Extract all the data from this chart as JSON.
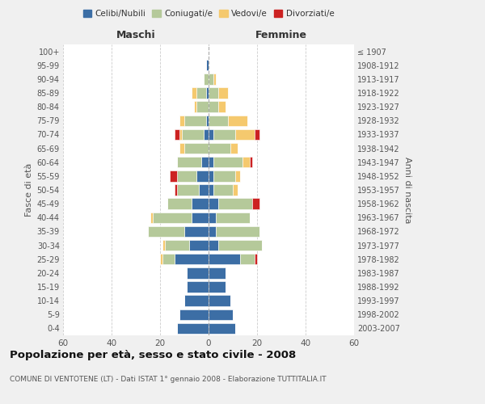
{
  "age_groups": [
    "0-4",
    "5-9",
    "10-14",
    "15-19",
    "20-24",
    "25-29",
    "30-34",
    "35-39",
    "40-44",
    "45-49",
    "50-54",
    "55-59",
    "60-64",
    "65-69",
    "70-74",
    "75-79",
    "80-84",
    "85-89",
    "90-94",
    "95-99",
    "100+"
  ],
  "birth_years": [
    "2003-2007",
    "1998-2002",
    "1993-1997",
    "1988-1992",
    "1983-1987",
    "1978-1982",
    "1973-1977",
    "1968-1972",
    "1963-1967",
    "1958-1962",
    "1953-1957",
    "1948-1952",
    "1943-1947",
    "1938-1942",
    "1933-1937",
    "1928-1932",
    "1923-1927",
    "1918-1922",
    "1913-1917",
    "1908-1912",
    "≤ 1907"
  ],
  "male": {
    "celibi": [
      13,
      12,
      10,
      9,
      9,
      14,
      8,
      10,
      7,
      7,
      4,
      5,
      3,
      0,
      2,
      1,
      0,
      1,
      0,
      1,
      0
    ],
    "coniugati": [
      0,
      0,
      0,
      0,
      0,
      5,
      10,
      15,
      16,
      10,
      9,
      8,
      10,
      10,
      9,
      9,
      5,
      4,
      2,
      0,
      0
    ],
    "vedovi": [
      0,
      0,
      0,
      0,
      0,
      1,
      1,
      0,
      1,
      0,
      0,
      0,
      0,
      2,
      1,
      2,
      1,
      2,
      0,
      0,
      0
    ],
    "divorziati": [
      0,
      0,
      0,
      0,
      0,
      0,
      0,
      0,
      0,
      0,
      1,
      3,
      0,
      0,
      2,
      0,
      0,
      0,
      0,
      0,
      0
    ]
  },
  "female": {
    "nubili": [
      11,
      10,
      9,
      7,
      7,
      13,
      4,
      3,
      3,
      4,
      2,
      2,
      2,
      0,
      2,
      0,
      0,
      0,
      0,
      0,
      0
    ],
    "coniugate": [
      0,
      0,
      0,
      0,
      0,
      6,
      18,
      18,
      14,
      14,
      8,
      9,
      12,
      9,
      9,
      8,
      4,
      4,
      2,
      0,
      0
    ],
    "vedove": [
      0,
      0,
      0,
      0,
      0,
      0,
      0,
      0,
      0,
      0,
      2,
      2,
      3,
      3,
      8,
      8,
      3,
      4,
      1,
      0,
      0
    ],
    "divorziate": [
      0,
      0,
      0,
      0,
      0,
      1,
      0,
      0,
      0,
      3,
      0,
      0,
      1,
      0,
      2,
      0,
      0,
      0,
      0,
      0,
      0
    ]
  },
  "colors": {
    "celibi": "#3c6ea5",
    "coniugati": "#b5c99a",
    "vedovi": "#f5c96e",
    "divorziati": "#cc2222"
  },
  "xlim": 60,
  "title": "Popolazione per età, sesso e stato civile - 2008",
  "subtitle": "COMUNE DI VENTOTENE (LT) - Dati ISTAT 1° gennaio 2008 - Elaborazione TUTTITALIA.IT",
  "xlabel_left": "Maschi",
  "xlabel_right": "Femmine",
  "ylabel_left": "Fasce di età",
  "ylabel_right": "Anni di nascita",
  "legend_labels": [
    "Celibi/Nubili",
    "Coniugati/e",
    "Vedovi/e",
    "Divorziati/e"
  ],
  "bg_color": "#f0f0f0",
  "plot_bg_color": "#ffffff"
}
